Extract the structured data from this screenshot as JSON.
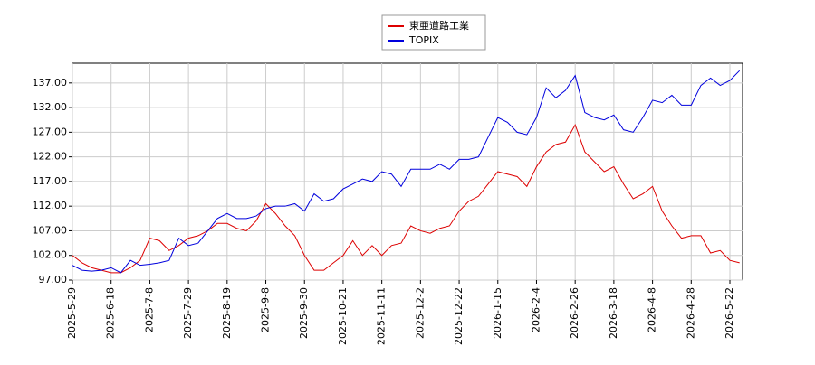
{
  "chart_data": {
    "type": "line",
    "categories": [
      "2025-5-29",
      null,
      null,
      null,
      "2025-6-18",
      null,
      null,
      null,
      "2025-7-8",
      null,
      null,
      null,
      "2025-7-29",
      null,
      null,
      null,
      "2025-8-19",
      null,
      null,
      null,
      "2025-9-8",
      null,
      null,
      null,
      "2025-9-30",
      null,
      null,
      null,
      "2025-10-21",
      null,
      null,
      null,
      "2025-11-11",
      null,
      null,
      null,
      "2025-12-2",
      null,
      null,
      null,
      "2025-12-22",
      null,
      null,
      null,
      "2026-1-15",
      null,
      null,
      null,
      "2026-2-4",
      null,
      null,
      null,
      "2026-2-26",
      null,
      null,
      null,
      "2026-3-18",
      null,
      null,
      null,
      "2026-4-8",
      null,
      null,
      null,
      "2026-4-28",
      null,
      null,
      null,
      "2026-5-22",
      null
    ],
    "series": [
      {
        "name": "東亜道路工業",
        "color": "#dd0000",
        "values": [
          102,
          100.5,
          99.5,
          99,
          98.5,
          98.5,
          99.5,
          101,
          105.5,
          105,
          103,
          104,
          105.5,
          106,
          107,
          108.5,
          108.5,
          107.5,
          107,
          109,
          112.5,
          110.5,
          108,
          106,
          102,
          99,
          99,
          100.5,
          102,
          105,
          102,
          104,
          102,
          104,
          104.5,
          108,
          107,
          106.5,
          107.5,
          108,
          111,
          113,
          114,
          116.5,
          119,
          118.5,
          118,
          116,
          120,
          123,
          124.5,
          125,
          128.5,
          123,
          121,
          119,
          120,
          116.5,
          113.5,
          114.5,
          116,
          111,
          108,
          105.5,
          106,
          106,
          102.5,
          103,
          101,
          100.5
        ]
      },
      {
        "name": "TOPIX",
        "color": "#0000dd",
        "values": [
          100,
          99,
          98.8,
          99,
          99.5,
          98.5,
          101,
          100,
          100.2,
          100.5,
          101,
          105.5,
          104,
          104.5,
          107,
          109.5,
          110.5,
          109.5,
          109.5,
          110,
          111.5,
          112,
          112,
          112.5,
          111,
          114.5,
          113,
          113.5,
          115.5,
          116.5,
          117.5,
          117,
          119,
          118.5,
          116,
          119.5,
          119.5,
          119.5,
          120.5,
          119.5,
          121.5,
          121.5,
          122,
          126,
          130,
          129,
          127,
          126.5,
          130,
          136,
          134,
          135.5,
          138.5,
          131,
          130,
          129.5,
          130.5,
          127.5,
          127,
          130,
          133.5,
          133,
          134.5,
          132.5,
          132.5,
          136.5,
          138,
          136.5,
          137.5,
          139.5
        ]
      }
    ],
    "ylim": [
      97,
      141
    ],
    "yticks": [
      {
        "value": 97,
        "label": "97.00"
      },
      {
        "value": 102,
        "label": "102.00"
      },
      {
        "value": 107,
        "label": "107.00"
      },
      {
        "value": 112,
        "label": "112.00"
      },
      {
        "value": 117,
        "label": "117.00"
      },
      {
        "value": 122,
        "label": "122.00"
      },
      {
        "value": 127,
        "label": "127.00"
      },
      {
        "value": 132,
        "label": "132.00"
      },
      {
        "value": 137,
        "label": "137.00"
      }
    ],
    "grid": true,
    "legend": "top"
  }
}
